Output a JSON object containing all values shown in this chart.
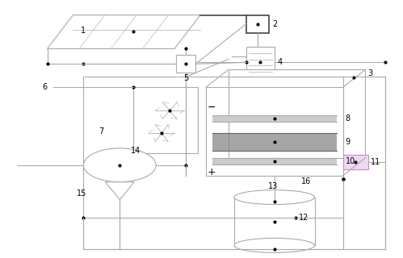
{
  "bg": "#ffffff",
  "lc": "#aaaaaa",
  "dc": "#444444",
  "lw": 0.8,
  "fig_w": 4.99,
  "fig_h": 3.2
}
